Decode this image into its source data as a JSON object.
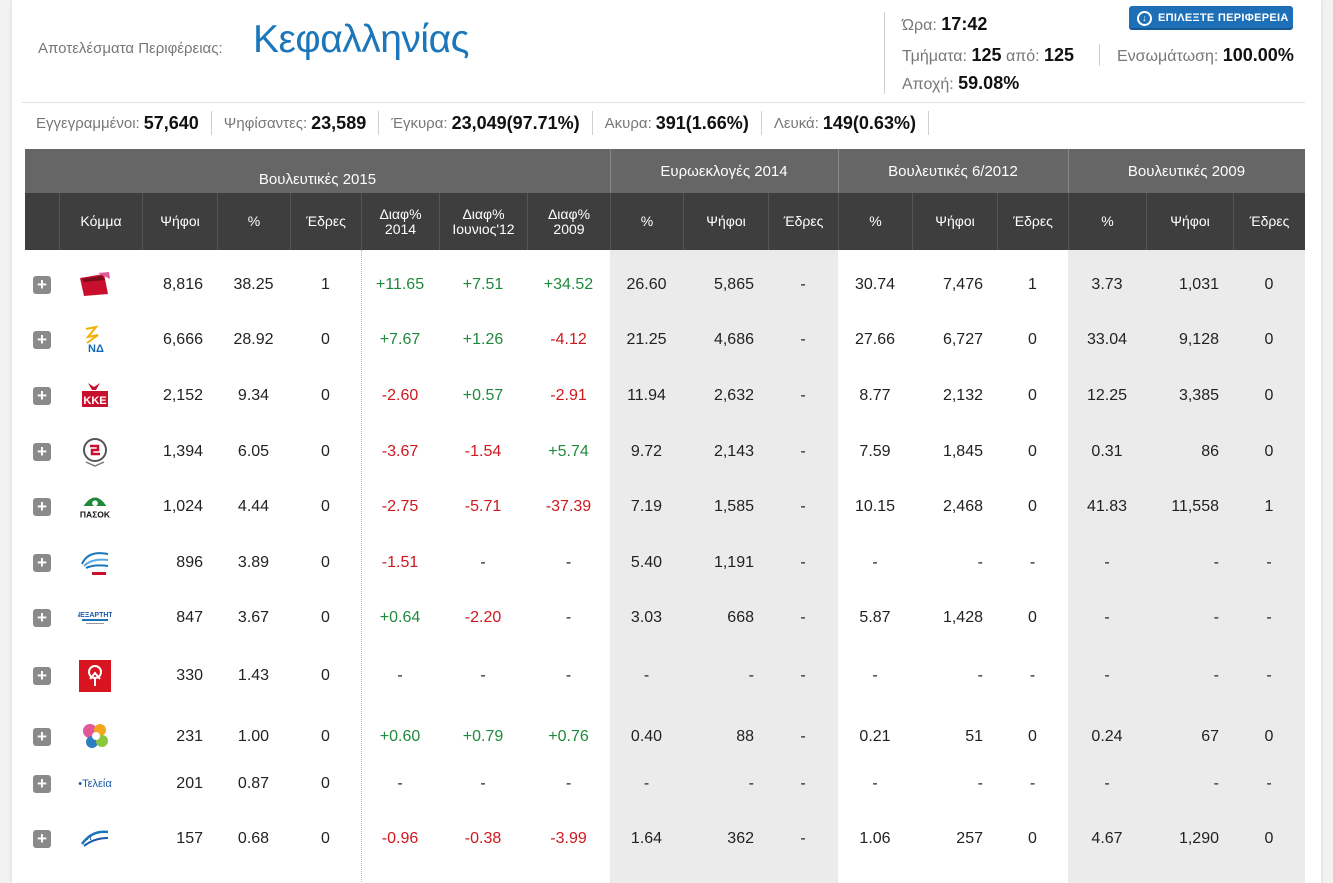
{
  "header": {
    "region_label": "Αποτελέσματα Περιφέρειας:",
    "region_name": "Κεφαλληνίας",
    "time_label": "Ώρα:",
    "time_value": "17:42",
    "sections_label": "Τμήματα:",
    "sections_value": "125",
    "sections_of_label": "από:",
    "sections_total": "125",
    "integration_label": "Ενσωμάτωση:",
    "integration_value": "100.00%",
    "abstention_label": "Αποχή:",
    "abstention_value": "59.08%",
    "select_region_button": "ΕΠΙΛΕΞΤΕ ΠΕΡΙΦΕΡΕΙΑ"
  },
  "summary": [
    {
      "label": "Εγγεγραμμένοι:",
      "value": "57,640"
    },
    {
      "label": "Ψηφίσαντες:",
      "value": "23,589"
    },
    {
      "label": "Έγκυρα:",
      "value": "23,049(97.71%)"
    },
    {
      "label": "Ακυρα:",
      "value": "391(1.66%)"
    },
    {
      "label": "Λευκά:",
      "value": "149(0.63%)"
    }
  ],
  "table": {
    "groups": [
      "Βουλευτικές 2015",
      "Ευρωεκλογές 2014",
      "Βουλευτικές 6/2012",
      "Βουλευτικές 2009"
    ],
    "columns": [
      "Κόμμα",
      "Ψήφοι",
      "%",
      "Έδρες",
      "Διαφ%\n2014",
      "Διαφ%\nΙουνιος'12",
      "Διαφ%\n2009",
      "%",
      "Ψήφοι",
      "Έδρες",
      "%",
      "Ψήφοι",
      "Έδρες",
      "%",
      "Ψήφοι",
      "Έδρες"
    ],
    "rows": [
      {
        "logo": "syriza-logo",
        "votes": "8,816",
        "pct": "38.25",
        "seats": "1",
        "d14": "+11.65",
        "d12": "+7.51",
        "d09": "+34.52",
        "e14p": "26.60",
        "e14v": "5,865",
        "e14s": "-",
        "v12p": "30.74",
        "v12v": "7,476",
        "v12s": "1",
        "v09p": "3.73",
        "v09v": "1,031",
        "v09s": "0"
      },
      {
        "logo": "nd-logo",
        "votes": "6,666",
        "pct": "28.92",
        "seats": "0",
        "d14": "+7.67",
        "d12": "+1.26",
        "d09": "-4.12",
        "e14p": "21.25",
        "e14v": "4,686",
        "e14s": "-",
        "v12p": "27.66",
        "v12v": "6,727",
        "v12s": "0",
        "v09p": "33.04",
        "v09v": "9,128",
        "v09s": "0"
      },
      {
        "logo": "kke-logo",
        "votes": "2,152",
        "pct": "9.34",
        "seats": "0",
        "d14": "-2.60",
        "d12": "+0.57",
        "d09": "-2.91",
        "e14p": "11.94",
        "e14v": "2,632",
        "e14s": "-",
        "v12p": "8.77",
        "v12v": "2,132",
        "v12s": "0",
        "v09p": "12.25",
        "v09v": "3,385",
        "v09s": "0"
      },
      {
        "logo": "xa-logo",
        "votes": "1,394",
        "pct": "6.05",
        "seats": "0",
        "d14": "-3.67",
        "d12": "-1.54",
        "d09": "+5.74",
        "e14p": "9.72",
        "e14v": "2,143",
        "e14s": "-",
        "v12p": "7.59",
        "v12v": "1,845",
        "v12s": "0",
        "v09p": "0.31",
        "v09v": "86",
        "v09s": "0"
      },
      {
        "logo": "pasok-logo",
        "votes": "1,024",
        "pct": "4.44",
        "seats": "0",
        "d14": "-2.75",
        "d12": "-5.71",
        "d09": "-37.39",
        "e14p": "7.19",
        "e14v": "1,585",
        "e14s": "-",
        "v12p": "10.15",
        "v12v": "2,468",
        "v12s": "0",
        "v09p": "41.83",
        "v09v": "11,558",
        "v09s": "1"
      },
      {
        "logo": "potami-logo",
        "votes": "896",
        "pct": "3.89",
        "seats": "0",
        "d14": "-1.51",
        "d12": "-",
        "d09": "-",
        "e14p": "5.40",
        "e14v": "1,191",
        "e14s": "-",
        "v12p": "-",
        "v12v": "-",
        "v12s": "-",
        "v09p": "-",
        "v09v": "-",
        "v09s": "-"
      },
      {
        "logo": "anel-logo",
        "votes": "847",
        "pct": "3.67",
        "seats": "0",
        "d14": "+0.64",
        "d12": "-2.20",
        "d09": "-",
        "e14p": "3.03",
        "e14v": "668",
        "e14s": "-",
        "v12p": "5.87",
        "v12v": "1,428",
        "v12s": "0",
        "v09p": "-",
        "v09v": "-",
        "v09s": "-"
      },
      {
        "logo": "kidiso-logo",
        "votes": "330",
        "pct": "1.43",
        "seats": "0",
        "d14": "-",
        "d12": "-",
        "d09": "-",
        "e14p": "-",
        "e14v": "-",
        "e14s": "-",
        "v12p": "-",
        "v12v": "-",
        "v12s": "-",
        "v09p": "-",
        "v09v": "-",
        "v09s": "-"
      },
      {
        "logo": "antarsya-logo",
        "votes": "231",
        "pct": "1.00",
        "seats": "0",
        "d14": "+0.60",
        "d12": "+0.79",
        "d09": "+0.76",
        "e14p": "0.40",
        "e14v": "88",
        "e14s": "-",
        "v12p": "0.21",
        "v12v": "51",
        "v12s": "0",
        "v09p": "0.24",
        "v09v": "67",
        "v09s": "0"
      },
      {
        "logo": "teleia-logo",
        "logo_text": "Τελεία",
        "votes": "201",
        "pct": "0.87",
        "seats": "0",
        "d14": "-",
        "d12": "-",
        "d09": "-",
        "e14p": "-",
        "e14v": "-",
        "e14s": "-",
        "v12p": "-",
        "v12v": "-",
        "v12s": "-",
        "v09p": "-",
        "v09v": "-",
        "v09s": "-"
      },
      {
        "logo": "laos-logo",
        "votes": "157",
        "pct": "0.68",
        "seats": "0",
        "d14": "-0.96",
        "d12": "-0.38",
        "d09": "-3.99",
        "e14p": "1.64",
        "e14v": "362",
        "e14s": "-",
        "v12p": "1.06",
        "v12v": "257",
        "v12s": "0",
        "v09p": "4.67",
        "v09v": "1,290",
        "v09s": "0"
      }
    ]
  },
  "colors": {
    "accent": "#1b77b9",
    "positive": "#1f8a3c",
    "negative": "#d0171e",
    "header_dark": "#3e3e3e",
    "header_mid": "#666666"
  }
}
